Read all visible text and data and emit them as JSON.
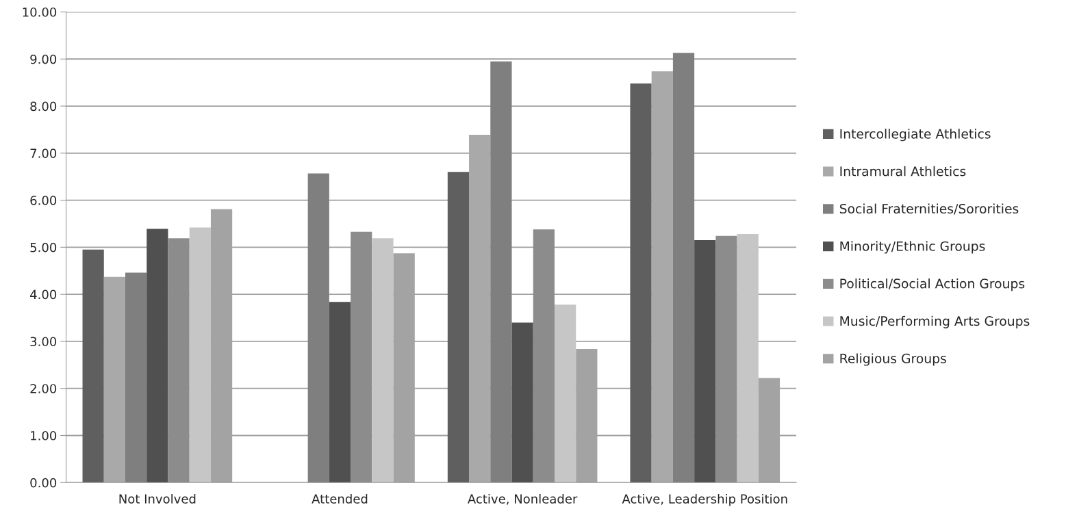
{
  "chart_data": {
    "type": "bar",
    "categories": [
      "Not Involved",
      "Attended",
      "Active, Nonleader",
      "Active, Leadership Position"
    ],
    "series": [
      {
        "name": "Intercollegiate Athletics",
        "color": "#5f5f5f",
        "values": [
          4.95,
          null,
          6.6,
          8.48
        ]
      },
      {
        "name": "Intramural Athletics",
        "color": "#a9a9a9",
        "values": [
          4.37,
          null,
          7.39,
          8.74
        ]
      },
      {
        "name": "Social Fraternities/Sororities",
        "color": "#7f7f7f",
        "values": [
          4.46,
          6.57,
          8.95,
          9.13
        ]
      },
      {
        "name": "Minority/Ethnic Groups",
        "color": "#505050",
        "values": [
          5.39,
          3.84,
          3.4,
          5.15
        ]
      },
      {
        "name": "Political/Social Action Groups",
        "color": "#8c8c8c",
        "values": [
          5.19,
          5.33,
          5.38,
          5.24
        ]
      },
      {
        "name": "Music/Performing Arts Groups",
        "color": "#c6c6c6",
        "values": [
          5.42,
          5.19,
          3.78,
          5.28
        ]
      },
      {
        "name": "Religious Groups",
        "color": "#a3a3a3",
        "values": [
          5.81,
          4.87,
          2.84,
          2.22
        ]
      }
    ],
    "ylim": [
      0,
      10
    ],
    "yticks": [
      {
        "value": 0,
        "label": "0.00"
      },
      {
        "value": 1,
        "label": "1.00"
      },
      {
        "value": 2,
        "label": "2.00"
      },
      {
        "value": 3,
        "label": "3.00"
      },
      {
        "value": 4,
        "label": "4.00"
      },
      {
        "value": 5,
        "label": "5.00"
      },
      {
        "value": 6,
        "label": "6.00"
      },
      {
        "value": 7,
        "label": "7.00"
      },
      {
        "value": 8,
        "label": "8.00"
      },
      {
        "value": 9,
        "label": "9.00"
      },
      {
        "value": 10,
        "label": "10.00"
      }
    ],
    "grid": "y",
    "legend": "right"
  }
}
